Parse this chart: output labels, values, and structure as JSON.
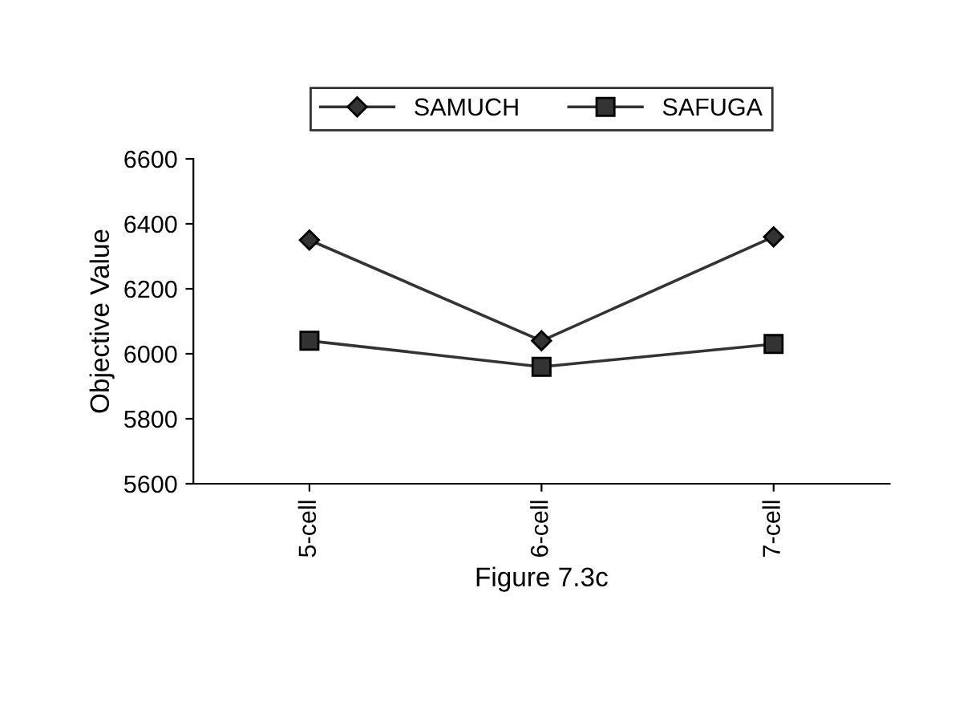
{
  "chart_data": {
    "type": "line",
    "ylabel": "Objective Value",
    "xlabel": "Figure 7.3c",
    "categories": [
      "5-cell",
      "6-cell",
      "7-cell"
    ],
    "series": [
      {
        "name": "SAMUCH",
        "color": "#333333",
        "marker": "diamond",
        "values": [
          6350,
          6040,
          6360
        ]
      },
      {
        "name": "SAFUGA",
        "color": "#333333",
        "marker": "square",
        "values": [
          6040,
          5960,
          6030
        ]
      }
    ],
    "ylim": [
      5600,
      6600
    ],
    "yticks": [
      5600,
      5800,
      6000,
      6200,
      6400,
      6600
    ],
    "grid": false,
    "legend": "top"
  }
}
